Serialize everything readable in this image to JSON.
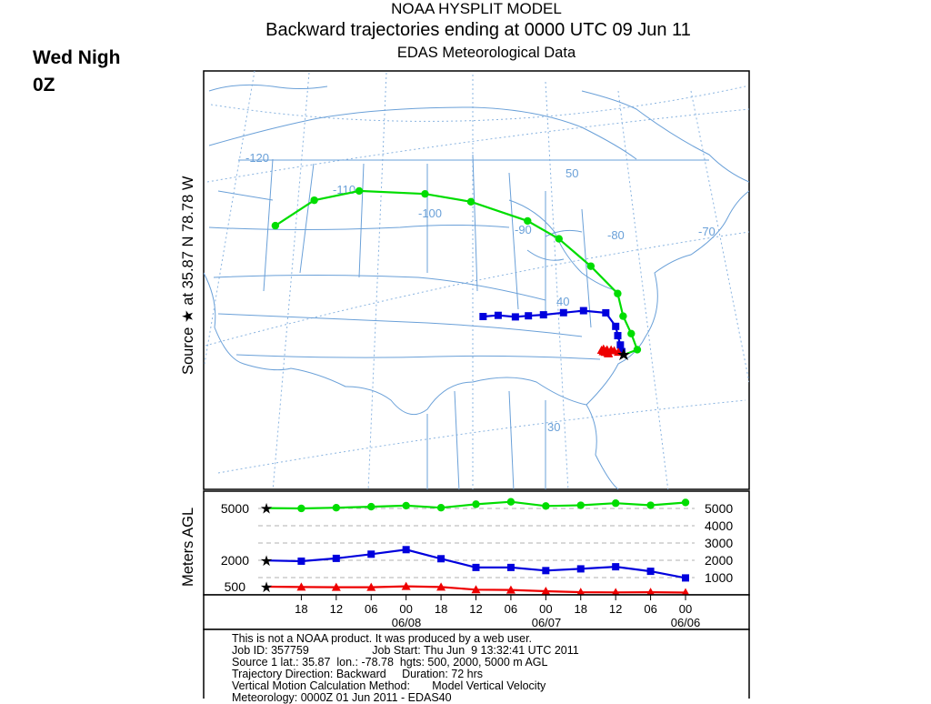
{
  "slide": {
    "label_line1": "Wed Nigh",
    "label_line2": "0Z"
  },
  "header": {
    "model": "NOAA HYSPLIT MODEL",
    "title": "Backward trajectories ending at 0000 UTC 09 Jun 11",
    "subtitle": "EDAS Meteorological Data"
  },
  "map": {
    "side_label": "Source ★ at 35.87 N 78.78 W",
    "lon_labels": [
      "-120",
      "-110",
      "-100",
      "-90",
      "-80",
      "-70"
    ],
    "lat_labels": [
      "50",
      "40",
      "30"
    ]
  },
  "footer": {
    "line1": "This is not a NOAA product. It was produced by a web user.",
    "line2": "Job ID: 357759                    Job Start: Thu Jun  9 13:32:41 UTC 2011",
    "line3": "Source 1 lat.: 35.87  lon.: -78.78  hgts: 500, 2000, 5000 m AGL",
    "line4": "Trajectory Direction: Backward     Duration: 72 hrs",
    "line5": "Vertical Motion Calculation Method:       Model Vertical Velocity",
    "line6": "Meteorology: 0000Z 01 Jun 2011 - EDAS40"
  },
  "colors": {
    "traj_5000": "#00dd00",
    "traj_2000": "#0000dd",
    "traj_500": "#ee0000",
    "map_lines": "#6aa0d8",
    "grid_dotted": "#8ab4e0"
  },
  "chart_data": {
    "type": "line",
    "ylabel": "Meters AGL",
    "y_ticks_left": [
      5000,
      2000,
      500
    ],
    "y_ticks_right": [
      5000,
      4000,
      3000,
      2000,
      1000
    ],
    "x_tick_labels": [
      "18",
      "12",
      "06",
      "00",
      "18",
      "12",
      "06",
      "00",
      "18",
      "12",
      "06",
      "00"
    ],
    "date_labels": [
      "06/08",
      "06/07",
      "06/06"
    ],
    "hours_back": [
      0,
      6,
      12,
      18,
      24,
      30,
      36,
      42,
      48,
      54,
      60,
      66,
      72
    ],
    "series": [
      {
        "height_m": 5000,
        "marker": "circle",
        "altitude": [
          5000,
          4980,
          5020,
          5080,
          5140,
          5020,
          5220,
          5360,
          5120,
          5160,
          5280,
          5160,
          5320
        ],
        "lat": [
          35.87,
          36.3,
          37.5,
          38.8,
          40.5,
          42.5,
          44.5,
          45.8,
          47.2,
          47.8,
          48.1,
          47.5,
          45.7
        ],
        "lon": [
          -78.78,
          -77.4,
          -77.9,
          -78.6,
          -79.0,
          -81.5,
          -84.5,
          -87.5,
          -93.0,
          -97.5,
          -104.0,
          -108.5,
          -112.5
        ]
      },
      {
        "height_m": 2000,
        "marker": "square",
        "altitude": [
          2000,
          1960,
          2120,
          2360,
          2620,
          2100,
          1600,
          1600,
          1420,
          1520,
          1640,
          1380,
          1000
        ],
        "lat": [
          35.87,
          36.1,
          36.6,
          37.3,
          38.0,
          39.0,
          39.1,
          38.9,
          38.7,
          38.6,
          38.5,
          38.6,
          38.5
        ],
        "lon": [
          -78.78,
          -78.95,
          -79.05,
          -79.25,
          -79.4,
          -80.3,
          -82.5,
          -84.5,
          -86.5,
          -88.0,
          -89.3,
          -91.0,
          -92.5
        ]
      },
      {
        "height_m": 500,
        "marker": "triangle",
        "altitude": [
          500,
          480,
          470,
          470,
          520,
          480,
          330,
          310,
          240,
          180,
          170,
          180,
          160
        ],
        "lat": [
          35.87,
          36.05,
          36.15,
          36.2,
          36.2,
          36.25,
          36.15,
          36.05,
          36.0,
          36.1,
          36.0,
          35.95,
          35.9
        ],
        "lon": [
          -78.78,
          -79.3,
          -79.7,
          -80.0,
          -80.4,
          -80.75,
          -80.95,
          -80.8,
          -80.6,
          -80.5,
          -80.4,
          -80.3,
          -80.3
        ]
      }
    ]
  }
}
